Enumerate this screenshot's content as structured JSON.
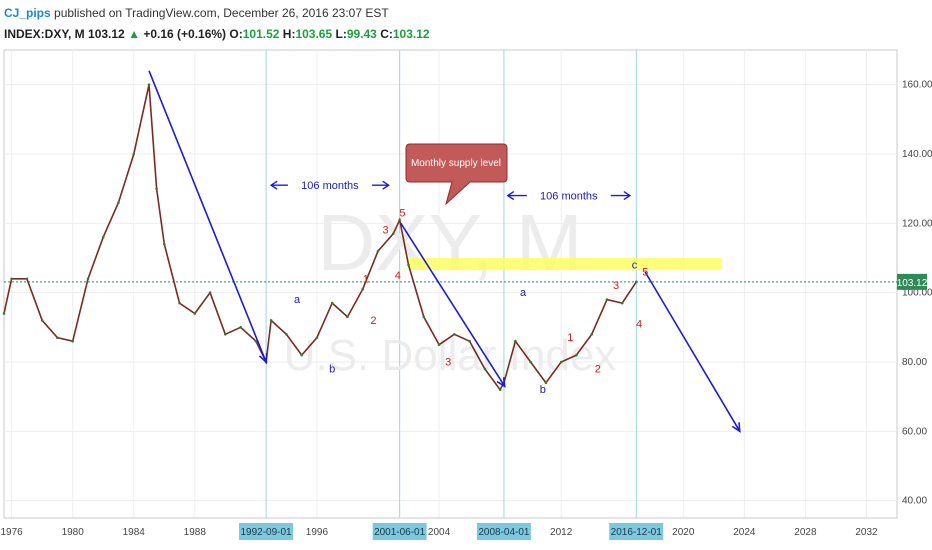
{
  "header": {
    "author": "CJ_pips",
    "published": "published on TradingView.com, December 26, 2016 23:07 EST",
    "symbol": "INDEX:DXY, M",
    "last": "103.12",
    "change": "+0.16 (+0.16%)",
    "o_label": "O:",
    "o_value": "101.52",
    "h_label": "H:",
    "h_value": "103.65",
    "l_label": "L:",
    "l_value": "99.43",
    "c_label": "C:",
    "c_value": "103.12"
  },
  "watermark": {
    "symbol": "DXY, M",
    "name": "U.S. Dollar Index"
  },
  "chart_data": {
    "type": "line",
    "title": "",
    "xlabel": "",
    "ylabel": "",
    "x_ticks": [
      "1976",
      "1980",
      "1984",
      "1988",
      "1992-09-01",
      "1996",
      "2001-06-01",
      "2004",
      "2008-04-01",
      "2012",
      "2016-12-01",
      "2020",
      "2024",
      "2028",
      "2032"
    ],
    "y_ticks": [
      "40.00",
      "60.00",
      "80.00",
      "100.00",
      "120.00",
      "140.00",
      "160.00"
    ],
    "ylim": [
      35,
      170
    ],
    "xlim": [
      1975.5,
      2034
    ],
    "last_price": "103.12",
    "grid": true,
    "vertical_markers": [
      1992.67,
      2001.42,
      2008.25,
      2016.92
    ],
    "series": [
      {
        "values": [
          [
            1975.5,
            94
          ],
          [
            1976,
            104
          ],
          [
            1977,
            104
          ],
          [
            1978,
            92
          ],
          [
            1979,
            87
          ],
          [
            1980,
            86
          ],
          [
            1981,
            104
          ],
          [
            1982,
            116
          ],
          [
            1983,
            126
          ],
          [
            1984,
            140
          ],
          [
            1985,
            160
          ],
          [
            1985.5,
            130
          ],
          [
            1986,
            114
          ],
          [
            1987,
            97
          ],
          [
            1988,
            94
          ],
          [
            1989,
            100
          ],
          [
            1990,
            88
          ],
          [
            1991,
            90
          ],
          [
            1992,
            86
          ],
          [
            1992.67,
            80
          ],
          [
            1993,
            92
          ],
          [
            1994,
            88
          ],
          [
            1995,
            82
          ],
          [
            1996,
            87
          ],
          [
            1997,
            97
          ],
          [
            1998,
            93
          ],
          [
            1999,
            101
          ],
          [
            2000,
            112
          ],
          [
            2001,
            117
          ],
          [
            2001.42,
            121
          ],
          [
            2002,
            108
          ],
          [
            2003,
            93
          ],
          [
            2004,
            85
          ],
          [
            2005,
            88
          ],
          [
            2006,
            86
          ],
          [
            2007,
            78
          ],
          [
            2008,
            72
          ],
          [
            2008.25,
            74
          ],
          [
            2009,
            86
          ],
          [
            2010,
            80
          ],
          [
            2011,
            74
          ],
          [
            2012,
            80
          ],
          [
            2013,
            82
          ],
          [
            2014,
            88
          ],
          [
            2015,
            98
          ],
          [
            2016,
            97
          ],
          [
            2016.92,
            103.12
          ]
        ]
      }
    ],
    "arrows": [
      {
        "from": [
          1985,
          164
        ],
        "to": [
          1992.67,
          80
        ]
      },
      {
        "from": [
          2001.5,
          120
        ],
        "to": [
          2008.3,
          73
        ]
      },
      {
        "from": [
          2017.5,
          106
        ],
        "to": [
          2023.7,
          60
        ]
      }
    ],
    "supply_zone": {
      "x": [
        2002,
        2022.5
      ],
      "y": [
        106.5,
        110
      ]
    },
    "wave_labels": [
      {
        "text": "a",
        "x": 1994.7,
        "y": 97,
        "color": "blue"
      },
      {
        "text": "b",
        "x": 1997,
        "y": 77,
        "color": "blue"
      },
      {
        "text": "1",
        "x": 1999.2,
        "y": 103,
        "color": "red"
      },
      {
        "text": "2",
        "x": 1999.7,
        "y": 91,
        "color": "red"
      },
      {
        "text": "3",
        "x": 2000.5,
        "y": 117,
        "color": "red"
      },
      {
        "text": "4",
        "x": 2001.3,
        "y": 104,
        "color": "red"
      },
      {
        "text": "5",
        "x": 2001.6,
        "y": 122,
        "color": "red"
      },
      {
        "text": "3",
        "x": 2004.6,
        "y": 79,
        "color": "red"
      },
      {
        "text": "a",
        "x": 2009.5,
        "y": 99,
        "color": "blue"
      },
      {
        "text": "b",
        "x": 2010.8,
        "y": 71,
        "color": "blue"
      },
      {
        "text": "1",
        "x": 2012.6,
        "y": 86,
        "color": "red"
      },
      {
        "text": "2",
        "x": 2014.4,
        "y": 77,
        "color": "red"
      },
      {
        "text": "3",
        "x": 2015.6,
        "y": 101,
        "color": "red"
      },
      {
        "text": "4",
        "x": 2017.1,
        "y": 90,
        "color": "red"
      },
      {
        "text": "c",
        "x": 2016.8,
        "y": 107,
        "color": "blue"
      },
      {
        "text": "5",
        "x": 2017.5,
        "y": 105,
        "color": "red"
      }
    ],
    "annotations": [
      {
        "text": "106 months",
        "x1": 1993,
        "x2": 2000.7,
        "y": 131
      },
      {
        "text": "106 months",
        "x1": 2008.5,
        "x2": 2016.5,
        "y": 128
      }
    ],
    "callout": {
      "text": "Monthly supply level"
    }
  }
}
